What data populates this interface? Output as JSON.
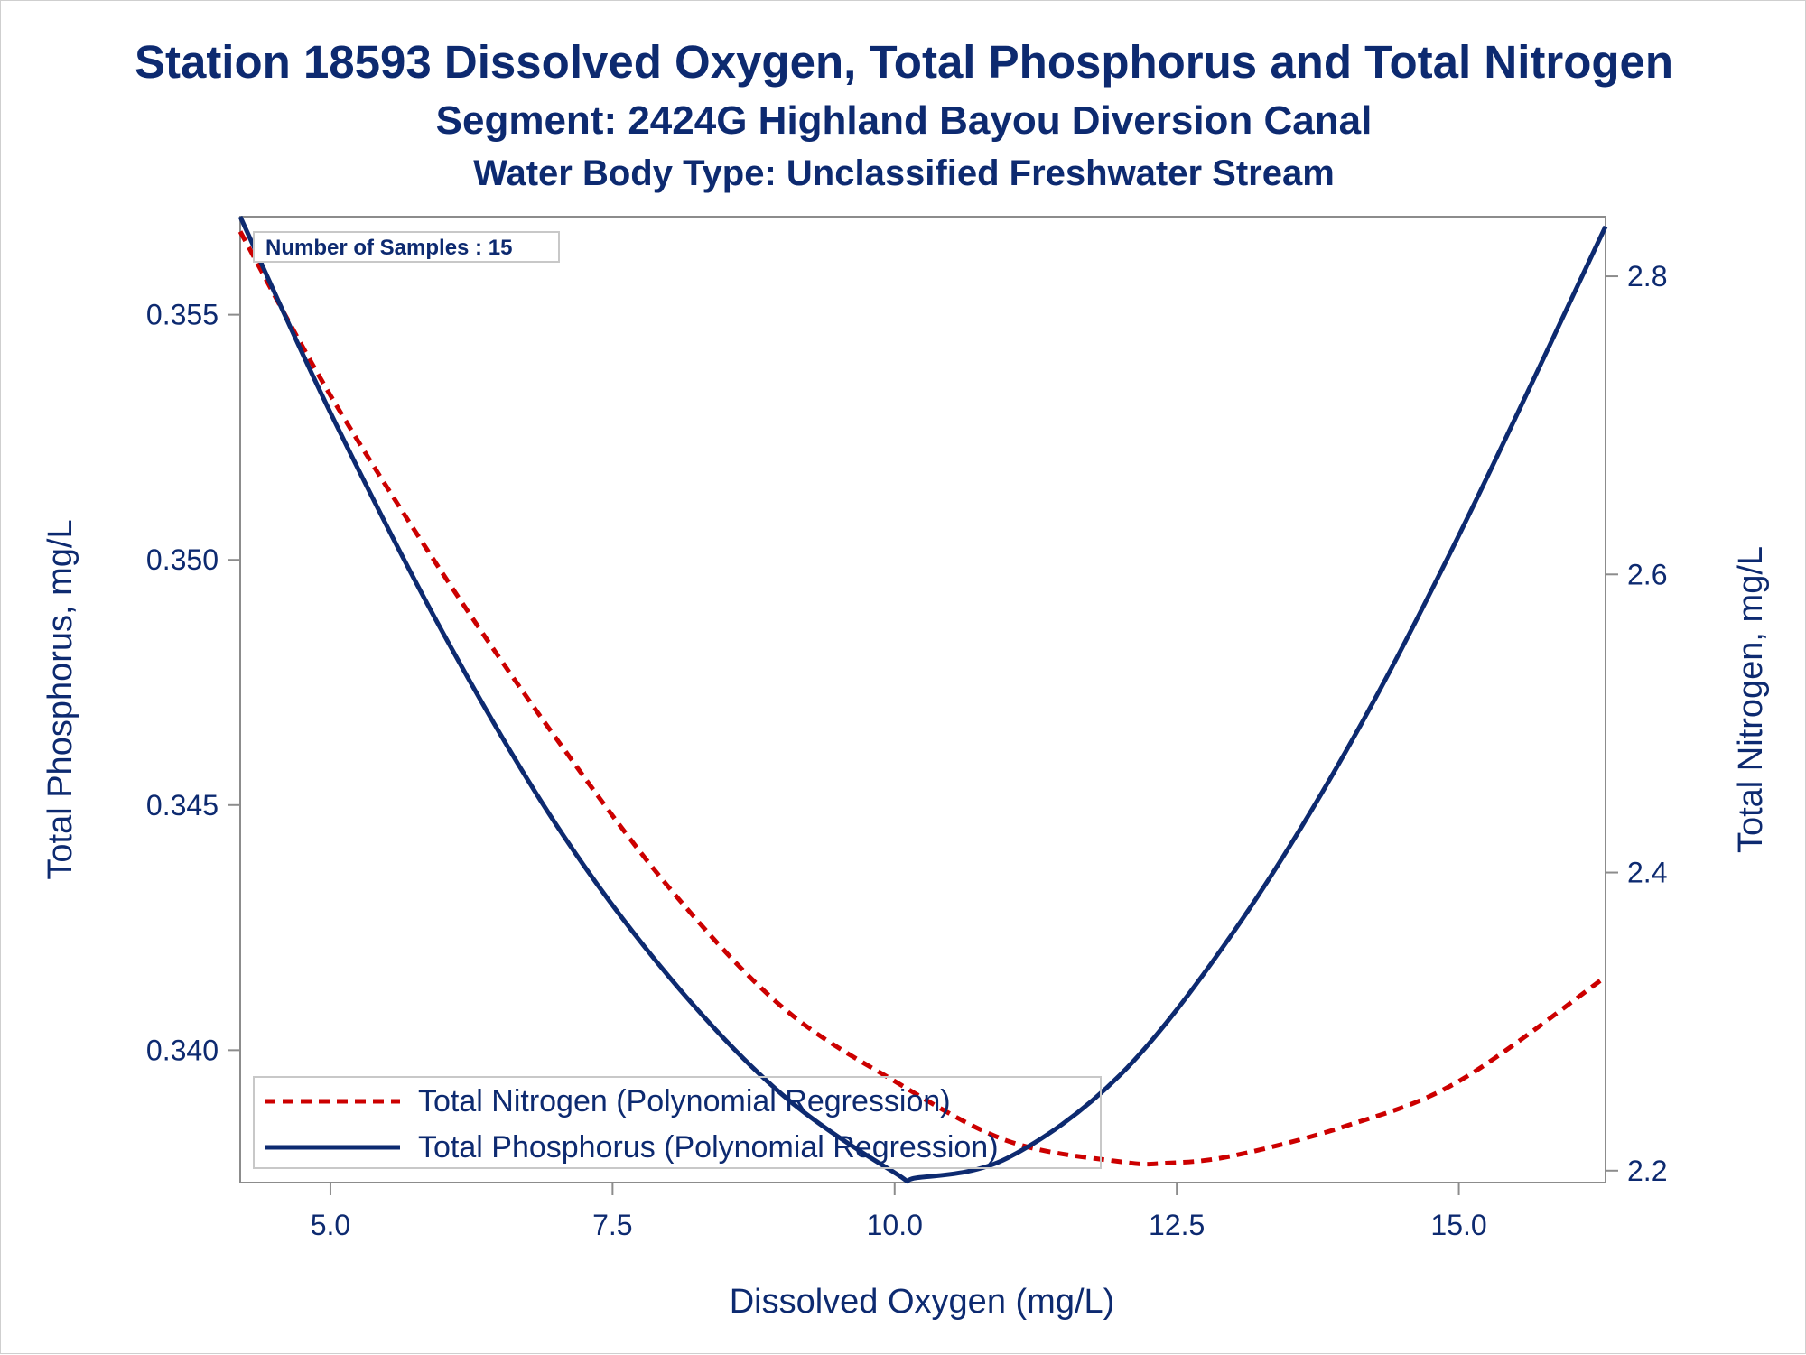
{
  "title": "Station 18593  Dissolved Oxygen, Total Phosphorus and Total Nitrogen",
  "subtitle1": "Segment: 2424G  Highland Bayou Diversion Canal",
  "subtitle2": "Water Body Type: Unclassified Freshwater Stream",
  "annotation": "Number of Samples : 15",
  "colors": {
    "text": "#0d2a70",
    "phosphorus": "#0d2a70",
    "nitrogen": "#cc0000",
    "axis": "#8c8c8c"
  },
  "chart_data": {
    "type": "line",
    "xlabel": "Dissolved Oxygen (mg/L)",
    "ylabel_left": "Total Phosphorus, mg/L",
    "ylabel_right": "Total Nitrogen, mg/L",
    "xlim": [
      4.2,
      16.3
    ],
    "ylim_left": [
      0.3373,
      0.357
    ],
    "ylim_right": [
      2.192,
      2.84
    ],
    "x_ticks": [
      "5.0",
      "7.5",
      "10.0",
      "12.5",
      "15.0"
    ],
    "y_left_ticks": [
      "0.340",
      "0.345",
      "0.350",
      "0.355"
    ],
    "y_right_ticks": [
      "2.2",
      "2.4",
      "2.6",
      "2.8"
    ],
    "legend_position": "bottom-left",
    "series": [
      {
        "name": "Total Nitrogen (Polynomial Regression)",
        "axis": "right",
        "style": "dashed",
        "x": [
          4.2,
          5.0,
          6.0,
          7.0,
          8.0,
          9.0,
          10.0,
          11.0,
          12.0,
          12.4,
          13.0,
          14.0,
          15.0,
          16.3
        ],
        "y": [
          2.83,
          2.72,
          2.6,
          2.49,
          2.39,
          2.31,
          2.26,
          2.22,
          2.206,
          2.205,
          2.21,
          2.23,
          2.26,
          2.33
        ]
      },
      {
        "name": "Total Phosphorus (Polynomial Regression)",
        "axis": "left",
        "style": "solid",
        "x": [
          4.2,
          5.0,
          6.0,
          7.0,
          8.0,
          9.0,
          10.0,
          10.2,
          11.0,
          12.0,
          13.0,
          14.0,
          15.0,
          16.3
        ],
        "y": [
          0.357,
          0.353,
          0.3485,
          0.3446,
          0.3415,
          0.3391,
          0.3375,
          0.3374,
          0.3378,
          0.3395,
          0.3424,
          0.3461,
          0.3505,
          0.3568
        ]
      }
    ]
  }
}
